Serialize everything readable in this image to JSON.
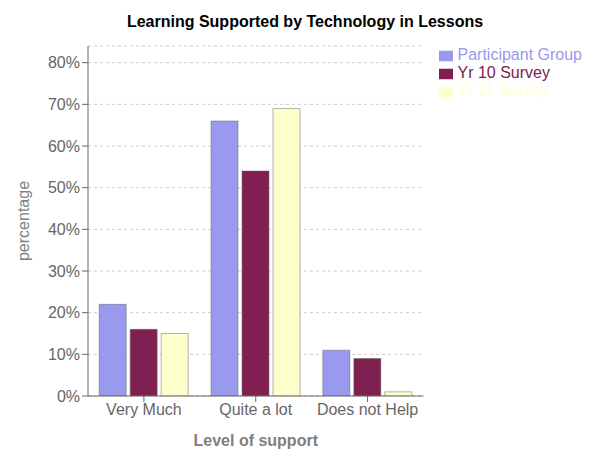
{
  "chart_data": {
    "type": "bar",
    "title": "Learning Supported by Technology in Lessons",
    "xlabel": "Level of support",
    "ylabel": "percentage",
    "categories": [
      "Very Much",
      "Quite a lot",
      "Does not Help"
    ],
    "series": [
      {
        "name": "Participant Group",
        "values": [
          0.22,
          0.66,
          0.11
        ],
        "color": "#9999EE"
      },
      {
        "name": "Yr 10 Survey",
        "values": [
          0.16,
          0.54,
          0.09
        ],
        "color": "#802050"
      },
      {
        "name": "Yr 11 Survey",
        "values": [
          0.15,
          0.69,
          0.01
        ],
        "color": "#FFFFCC"
      }
    ],
    "ylim": [
      0,
      0.84
    ],
    "yticks": [
      {
        "value": 0.0,
        "label": "0%"
      },
      {
        "value": 0.1,
        "label": "10%"
      },
      {
        "value": 0.2,
        "label": "20%"
      },
      {
        "value": 0.3,
        "label": "30%"
      },
      {
        "value": 0.4,
        "label": "40%"
      },
      {
        "value": 0.5,
        "label": "50%"
      },
      {
        "value": 0.6,
        "label": "60%"
      },
      {
        "value": 0.7,
        "label": "70%"
      },
      {
        "value": 0.8,
        "label": "80%"
      }
    ],
    "grid": true,
    "legend": "right"
  }
}
